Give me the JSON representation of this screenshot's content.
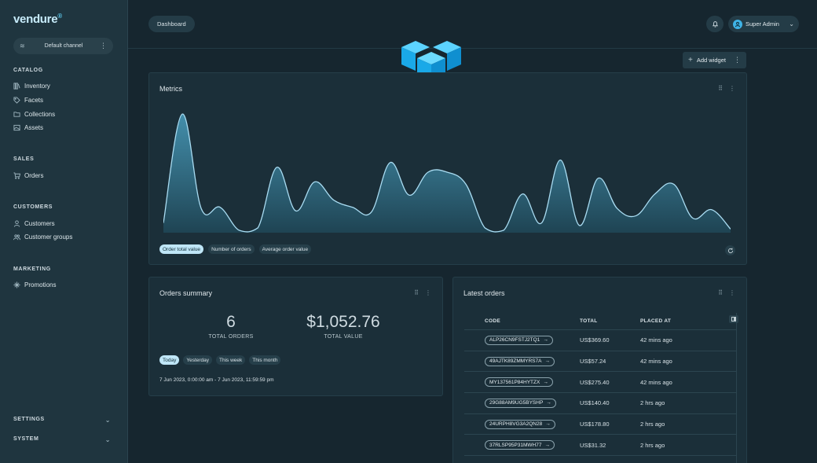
{
  "brand": {
    "name": "vendure",
    "mark": "®"
  },
  "channel": {
    "label": "Default channel"
  },
  "sidebar": {
    "sections": [
      {
        "label": "CATALOG",
        "items": [
          "Inventory",
          "Facets",
          "Collections",
          "Assets"
        ]
      },
      {
        "label": "SALES",
        "items": [
          "Orders"
        ]
      },
      {
        "label": "CUSTOMERS",
        "items": [
          "Customers",
          "Customer groups"
        ]
      },
      {
        "label": "MARKETING",
        "items": [
          "Promotions"
        ]
      }
    ],
    "collapsibles": [
      "SETTINGS",
      "SYSTEM"
    ]
  },
  "header": {
    "breadcrumb": "Dashboard",
    "user": "Super Admin"
  },
  "toolbar": {
    "add_widget": "Add widget"
  },
  "metrics": {
    "title": "Metrics",
    "tabs": [
      "Order total value",
      "Number of orders",
      "Average order value"
    ],
    "active_tab": "Order total value"
  },
  "chart_data": {
    "type": "area",
    "title": "",
    "xlabel": "",
    "ylabel": "",
    "ylim": [
      0,
      100
    ],
    "grid": false,
    "values": [
      8,
      98,
      20,
      21,
      2,
      4,
      54,
      18,
      42,
      27,
      21,
      17,
      58,
      31,
      50,
      50,
      40,
      4,
      2,
      32,
      8,
      60,
      6,
      45,
      20,
      14,
      32,
      40,
      12,
      19,
      3
    ]
  },
  "orders_summary": {
    "title": "Orders summary",
    "total_orders": "6",
    "total_orders_label": "TOTAL ORDERS",
    "total_value": "$1,052.76",
    "total_value_label": "TOTAL VALUE",
    "ranges": [
      "Today",
      "Yesterday",
      "This week",
      "This month"
    ],
    "active_range": "Today",
    "date_range": "7 Jun 2023, 0:00:00 am - 7 Jun 2023, 11:59:59 pm"
  },
  "latest_orders": {
    "title": "Latest orders",
    "columns": {
      "code": "CODE",
      "total": "TOTAL",
      "placed_at": "PLACED AT"
    },
    "rows": [
      {
        "code": "ALP26CN9FSTJ2TQ1",
        "total": "US$369.60",
        "placed_at": "42 mins ago"
      },
      {
        "code": "49AJTK89ZMMYRS7A",
        "total": "US$57.24",
        "placed_at": "42 mins ago"
      },
      {
        "code": "MY137561P84HYTZX",
        "total": "US$275.40",
        "placed_at": "42 mins ago"
      },
      {
        "code": "29G88AM9UG5BYSHP",
        "total": "US$140.40",
        "placed_at": "2 hrs ago"
      },
      {
        "code": "24URPH8VG3A2QN28",
        "total": "US$178.80",
        "placed_at": "2 hrs ago"
      },
      {
        "code": "37RLSP95P31MWH77",
        "total": "US$31.32",
        "placed_at": "2 hrs ago"
      }
    ]
  }
}
